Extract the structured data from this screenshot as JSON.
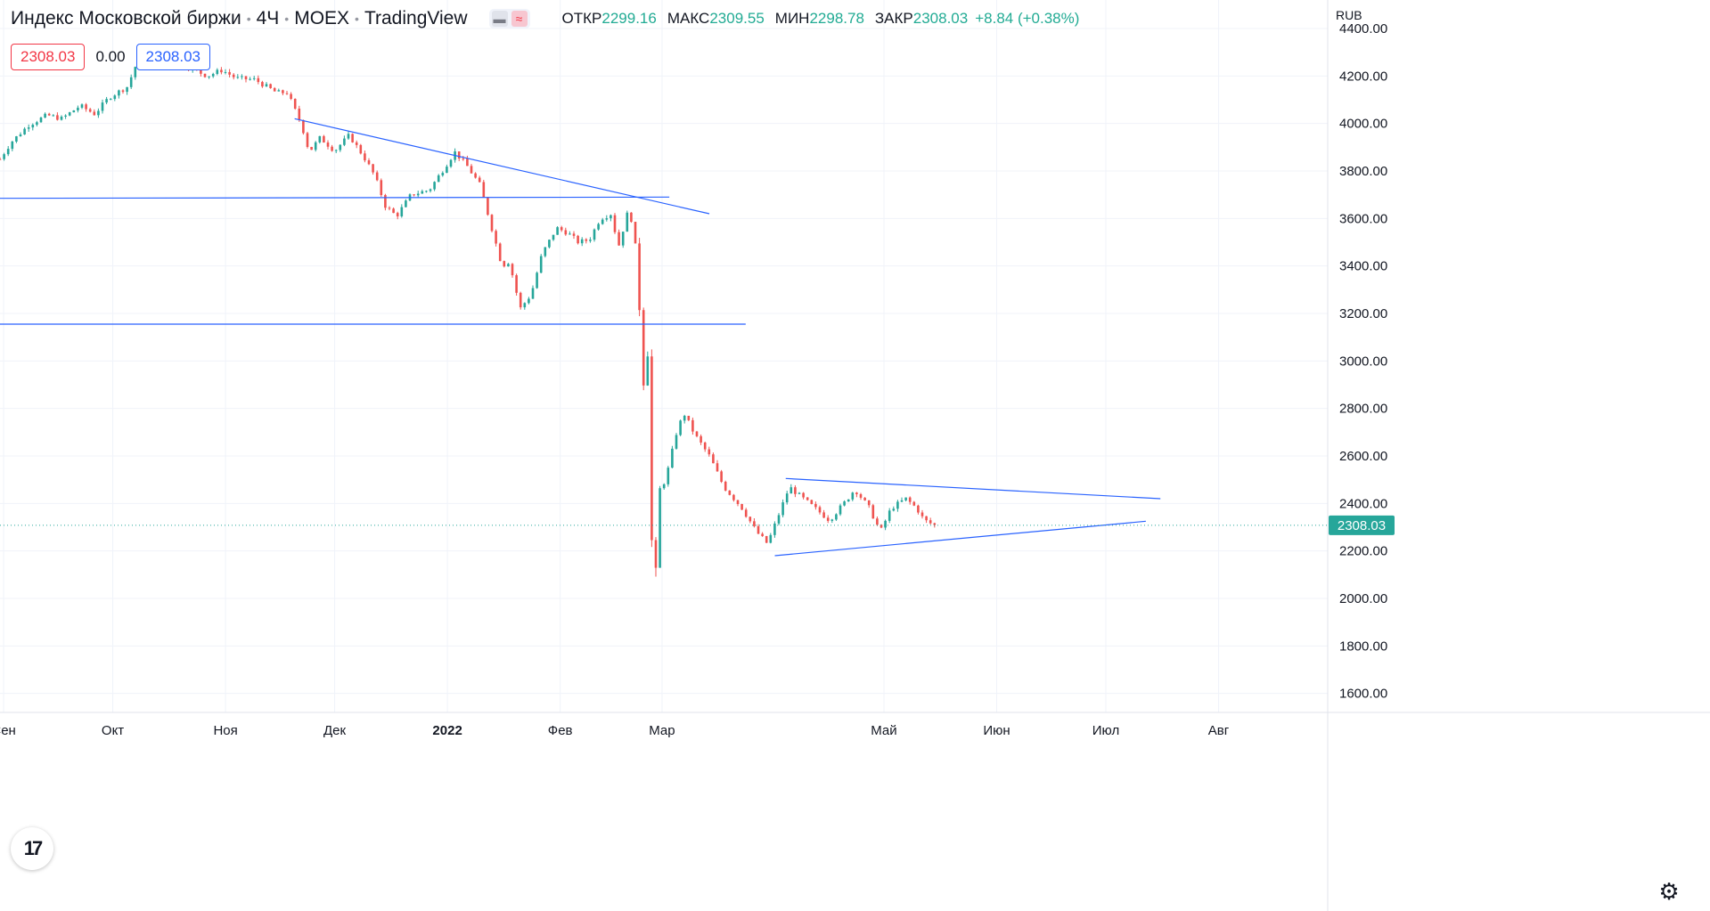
{
  "header": {
    "title": "Индекс Московской биржи",
    "interval": "4Ч",
    "exchange": "MOEX",
    "source": "TradingView",
    "ohlc": {
      "open_label": "ОТКР",
      "open": "2299.16",
      "high_label": "МАКС",
      "high": "2309.55",
      "low_label": "МИН",
      "low": "2298.78",
      "close_label": "ЗАКР",
      "close": "2308.03",
      "change": "+8.84 (+0.38%)"
    }
  },
  "order_row": {
    "sell": "2308.03",
    "spread": "0.00",
    "buy": "2308.03"
  },
  "currency": "RUB",
  "colors": {
    "up": "#26a69a",
    "down": "#ef5350",
    "trendline": "#2962ff",
    "price_line": "#26a69a"
  },
  "icons": {
    "logo": "tradingview-logo-icon",
    "settings": "gear-icon"
  },
  "chart_data": {
    "type": "candlestick",
    "title": "Индекс Московской биржи · 4Ч · MOEX",
    "ylim": [
      1520,
      4520
    ],
    "yticks": [
      1600,
      1800,
      2000,
      2200,
      2400,
      2600,
      2800,
      3000,
      3200,
      3400,
      3600,
      3800,
      4000,
      4200,
      4400
    ],
    "ytick_labels": [
      "1600.00",
      "1800.00",
      "2000.00",
      "2200.00",
      "2400.00",
      "2600.00",
      "2800.00",
      "3000.00",
      "3200.00",
      "3400.00",
      "3600.00",
      "3800.00",
      "4000.00",
      "4200.00",
      "4400.00"
    ],
    "xlim": [
      "2021-08-31",
      "2022-08-31"
    ],
    "xticks": [
      {
        "date": "2021-09-01",
        "label": "Сен"
      },
      {
        "date": "2021-10-01",
        "label": "Окт"
      },
      {
        "date": "2021-11-01",
        "label": "Ноя"
      },
      {
        "date": "2021-12-01",
        "label": "Дек"
      },
      {
        "date": "2022-01-01",
        "label": "2022"
      },
      {
        "date": "2022-02-01",
        "label": "Фев"
      },
      {
        "date": "2022-03-01",
        "label": "Мар"
      },
      {
        "date": "2022-05-01",
        "label": "Май"
      },
      {
        "date": "2022-06-01",
        "label": "Июн"
      },
      {
        "date": "2022-07-01",
        "label": "Июл"
      },
      {
        "date": "2022-08-01",
        "label": "Авг"
      }
    ],
    "price_path": [
      [
        "2021-08-31",
        3850
      ],
      [
        "2021-09-03",
        3920
      ],
      [
        "2021-09-08",
        3995
      ],
      [
        "2021-09-13",
        4035
      ],
      [
        "2021-09-17",
        4020
      ],
      [
        "2021-09-22",
        4075
      ],
      [
        "2021-09-26",
        4040
      ],
      [
        "2021-09-30",
        4110
      ],
      [
        "2021-10-05",
        4155
      ],
      [
        "2021-10-08",
        4270
      ],
      [
        "2021-10-13",
        4250
      ],
      [
        "2021-10-18",
        4275
      ],
      [
        "2021-10-22",
        4235
      ],
      [
        "2021-10-27",
        4200
      ],
      [
        "2021-10-31",
        4225
      ],
      [
        "2021-11-04",
        4190
      ],
      [
        "2021-11-09",
        4185
      ],
      [
        "2021-11-15",
        4130
      ],
      [
        "2021-11-18",
        4130
      ],
      [
        "2021-11-22",
        3990
      ],
      [
        "2021-11-24",
        3880
      ],
      [
        "2021-11-27",
        3940
      ],
      [
        "2021-12-01",
        3885
      ],
      [
        "2021-12-05",
        3950
      ],
      [
        "2021-12-09",
        3860
      ],
      [
        "2021-12-12",
        3780
      ],
      [
        "2021-12-15",
        3650
      ],
      [
        "2021-12-18",
        3610
      ],
      [
        "2021-12-22",
        3700
      ],
      [
        "2021-12-27",
        3720
      ],
      [
        "2021-12-31",
        3810
      ],
      [
        "2022-01-03",
        3880
      ],
      [
        "2022-01-06",
        3830
      ],
      [
        "2022-01-10",
        3740
      ],
      [
        "2022-01-13",
        3570
      ],
      [
        "2022-01-16",
        3400
      ],
      [
        "2022-01-18",
        3420
      ],
      [
        "2022-01-21",
        3220
      ],
      [
        "2022-01-24",
        3280
      ],
      [
        "2022-01-27",
        3450
      ],
      [
        "2022-01-31",
        3560
      ],
      [
        "2022-02-03",
        3540
      ],
      [
        "2022-02-06",
        3500
      ],
      [
        "2022-02-09",
        3510
      ],
      [
        "2022-02-12",
        3600
      ],
      [
        "2022-02-15",
        3620
      ],
      [
        "2022-02-17",
        3480
      ],
      [
        "2022-02-20",
        3650
      ],
      [
        "2022-02-22",
        3450
      ],
      [
        "2022-02-24",
        2900
      ],
      [
        "2022-02-25",
        3080
      ],
      [
        "2022-02-26",
        2300
      ],
      [
        "2022-02-27",
        1950
      ],
      [
        "2022-02-28",
        2450
      ],
      [
        "2022-03-02",
        2500
      ],
      [
        "2022-03-05",
        2700
      ],
      [
        "2022-03-07",
        2780
      ],
      [
        "2022-03-10",
        2690
      ],
      [
        "2022-03-14",
        2600
      ],
      [
        "2022-03-18",
        2470
      ],
      [
        "2022-03-23",
        2380
      ],
      [
        "2022-03-27",
        2280
      ],
      [
        "2022-03-30",
        2230
      ],
      [
        "2022-04-02",
        2350
      ],
      [
        "2022-04-05",
        2470
      ],
      [
        "2022-04-08",
        2430
      ],
      [
        "2022-04-12",
        2380
      ],
      [
        "2022-04-16",
        2330
      ],
      [
        "2022-04-20",
        2400
      ],
      [
        "2022-04-23",
        2460
      ],
      [
        "2022-04-27",
        2380
      ],
      [
        "2022-04-30",
        2280
      ],
      [
        "2022-05-03",
        2380
      ],
      [
        "2022-05-07",
        2420
      ],
      [
        "2022-05-10",
        2380
      ],
      [
        "2022-05-12",
        2330
      ],
      [
        "2022-05-16",
        2300
      ]
    ],
    "trendlines": [
      {
        "from": [
          "2021-11-20",
          4020
        ],
        "to": [
          "2022-03-14",
          3620
        ]
      },
      {
        "from": [
          "2021-08-31",
          3685
        ],
        "to": [
          "2022-03-03",
          3690
        ]
      },
      {
        "from": [
          "2021-08-31",
          3155
        ],
        "to": [
          "2022-03-24",
          3155
        ]
      },
      {
        "from": [
          "2022-04-04",
          2505
        ],
        "to": [
          "2022-07-16",
          2420
        ]
      },
      {
        "from": [
          "2022-04-01",
          2180
        ],
        "to": [
          "2022-07-12",
          2325
        ]
      }
    ],
    "last_price": {
      "value": 2308.03,
      "label": "2308.03"
    },
    "grid": true
  }
}
